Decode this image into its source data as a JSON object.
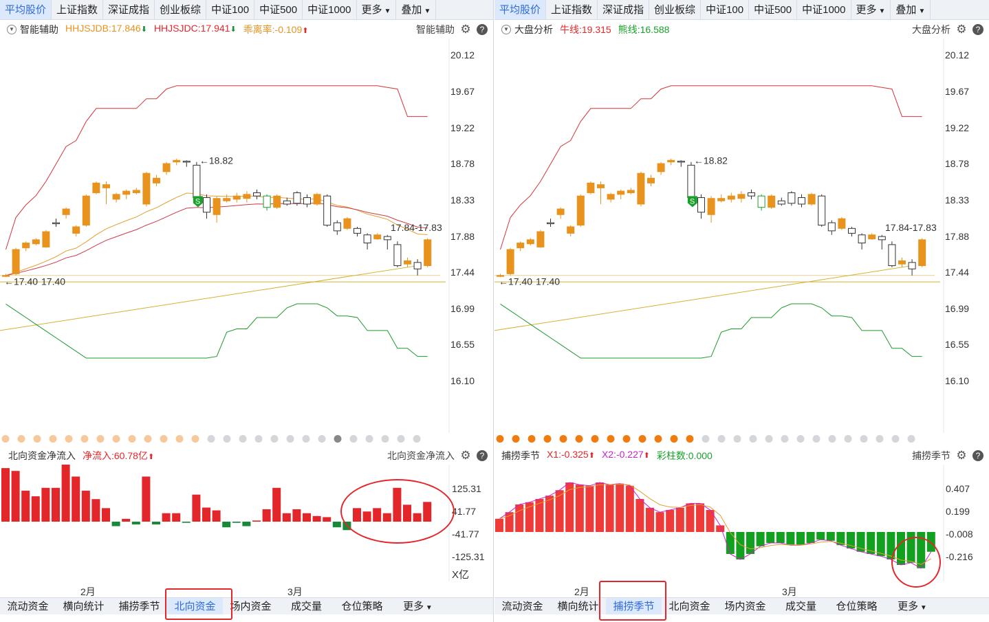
{
  "colors": {
    "up": "#e8931e",
    "down": "#ffffff",
    "bull_green": "#19a02a",
    "red": "#e3262a",
    "green": "#188a3a",
    "band_red": "#d6333a",
    "band_green": "#1c9a2a",
    "ma_orange": "#e0a030",
    "ma_red": "#d0384a",
    "trend": "#d4b030",
    "accent": "#2f6bd8"
  },
  "left": {
    "tabs": [
      {
        "label": "平均股价",
        "active": true
      },
      {
        "label": "上证指数"
      },
      {
        "label": "深证成指"
      },
      {
        "label": "创业板综"
      },
      {
        "label": "中证100"
      },
      {
        "label": "中证500"
      },
      {
        "label": "中证1000"
      },
      {
        "label": "更多",
        "dropdown": true
      },
      {
        "label": "叠加",
        "dropdown": true
      }
    ],
    "info": {
      "indicator": "智能辅助",
      "values": [
        {
          "text": "HHJSJDB:17.846",
          "color": "#e8931e",
          "arrow": "⬇",
          "arrow_color": "#188a3a"
        },
        {
          "text": "HHJSJDC:17.941",
          "color": "#e3262a",
          "arrow": "⬇",
          "arrow_color": "#188a3a"
        },
        {
          "text": "乖离率:-0.109",
          "color": "#e8931e",
          "arrow": "⬆",
          "arrow_color": "#e3262a"
        }
      ],
      "right_label": "智能辅助"
    },
    "sub_info": {
      "indicator": "北向资金净流入",
      "values": [
        {
          "text": "净流入:60.78亿",
          "color": "#e3262a",
          "arrow": "⬆",
          "arrow_color": "#e3262a"
        }
      ],
      "right_label": "北向资金净流入"
    },
    "sub_ylabels": [
      "125.31",
      "41.77",
      "-41.77",
      "-125.31"
    ],
    "unit": "X亿",
    "bottom_tabs": [
      {
        "label": "流动资金"
      },
      {
        "label": "横向统计"
      },
      {
        "label": "捕捞季节"
      },
      {
        "label": "北向资金",
        "active": true
      },
      {
        "label": "场内资金"
      },
      {
        "label": "成交量"
      },
      {
        "label": "仓位策略"
      },
      {
        "label": "更多",
        "dropdown": true
      }
    ],
    "dots": {
      "count": 27,
      "active_count": 0,
      "marker_index": 21
    },
    "north_flow": [
      95,
      90,
      55,
      45,
      60,
      60,
      110,
      80,
      55,
      40,
      24,
      -8,
      5,
      -5,
      80,
      -5,
      15,
      15,
      -2,
      48,
      25,
      20,
      -10,
      -2,
      -8,
      2,
      22,
      60,
      15,
      22,
      15,
      10,
      8,
      -10,
      -15,
      24,
      18,
      24,
      15,
      60,
      30,
      15,
      35
    ]
  },
  "right": {
    "tabs": [
      {
        "label": "平均股价",
        "active": true
      },
      {
        "label": "上证指数"
      },
      {
        "label": "深证成指"
      },
      {
        "label": "创业板综"
      },
      {
        "label": "中证100"
      },
      {
        "label": "中证500"
      },
      {
        "label": "中证1000"
      },
      {
        "label": "更多",
        "dropdown": true
      },
      {
        "label": "叠加",
        "dropdown": true
      }
    ],
    "info": {
      "indicator": "大盘分析",
      "values": [
        {
          "text": "牛线:19.315",
          "color": "#e3262a"
        },
        {
          "text": "熊线:16.588",
          "color": "#19a02a"
        }
      ],
      "right_label": "大盘分析"
    },
    "sub_info": {
      "indicator": "捕捞季节",
      "values": [
        {
          "text": "X1:-0.325",
          "color": "#e3262a",
          "arrow": "⬆",
          "arrow_color": "#e3262a"
        },
        {
          "text": "X2:-0.227",
          "color": "#cc22cc",
          "arrow": "⬆",
          "arrow_color": "#e3262a"
        },
        {
          "text": "彩柱数:0.000",
          "color": "#19a02a"
        }
      ],
      "right_label": "捕捞季节"
    },
    "sub_ylabels": [
      "0.407",
      "0.199",
      "-0.008",
      "-0.216"
    ],
    "bottom_tabs": [
      {
        "label": "流动资金"
      },
      {
        "label": "横向统计"
      },
      {
        "label": "捕捞季节",
        "active": true
      },
      {
        "label": "北向资金"
      },
      {
        "label": "场内资金"
      },
      {
        "label": "成交量"
      },
      {
        "label": "仓位策略"
      },
      {
        "label": "更多",
        "dropdown": true
      }
    ],
    "dots": {
      "count": 27,
      "active_count": 13
    },
    "season_x1": [
      0.12,
      0.18,
      0.25,
      0.27,
      0.3,
      0.33,
      0.38,
      0.45,
      0.43,
      0.42,
      0.45,
      0.43,
      0.44,
      0.42,
      0.3,
      0.22,
      0.18,
      0.2,
      0.22,
      0.26,
      0.26,
      0.2,
      0.06,
      -0.2,
      -0.25,
      -0.2,
      -0.13,
      -0.1,
      -0.1,
      -0.12,
      -0.12,
      -0.1,
      -0.07,
      -0.08,
      -0.12,
      -0.15,
      -0.18,
      -0.2,
      -0.22,
      -0.25,
      -0.3,
      -0.28,
      -0.33,
      -0.18
    ]
  },
  "main_chart": {
    "type": "candlestick",
    "ylabels": [
      "20.12",
      "19.67",
      "19.22",
      "18.78",
      "18.33",
      "17.88",
      "17.44",
      "16.99",
      "16.55",
      "16.10"
    ],
    "ann_high": "←18.82",
    "ann_low": "←17.40",
    "ann_low2": "17.40",
    "ann_last": "17.84-17.83",
    "months": [
      "2月",
      "3月"
    ],
    "candles": [
      [
        17.4,
        17.4,
        17.42,
        17.38
      ],
      [
        17.42,
        17.72,
        17.74,
        17.4
      ],
      [
        17.74,
        17.8,
        17.82,
        17.7
      ],
      [
        17.79,
        17.84,
        17.86,
        17.77
      ],
      [
        17.75,
        17.94,
        17.96,
        17.74
      ],
      [
        18.05,
        18.04,
        18.1,
        18.0
      ],
      [
        18.15,
        18.22,
        18.24,
        18.1
      ],
      [
        17.92,
        18.0,
        18.02,
        17.88
      ],
      [
        18.02,
        18.38,
        18.4,
        18.0
      ],
      [
        18.42,
        18.54,
        18.56,
        18.4
      ],
      [
        18.48,
        18.52,
        18.56,
        18.28
      ],
      [
        18.34,
        18.4,
        18.42,
        18.3
      ],
      [
        18.4,
        18.44,
        18.46,
        18.34
      ],
      [
        18.42,
        18.45,
        18.48,
        18.4
      ],
      [
        18.28,
        18.66,
        18.68,
        18.25
      ],
      [
        18.54,
        18.6,
        18.64,
        18.5
      ],
      [
        18.68,
        18.78,
        18.8,
        18.64
      ],
      [
        18.8,
        18.82,
        18.84,
        18.76
      ],
      [
        18.81,
        18.8,
        18.82,
        18.74
      ],
      [
        18.76,
        18.36,
        18.8,
        18.26
      ],
      [
        18.36,
        18.18,
        18.4,
        18.1
      ],
      [
        18.15,
        18.35,
        18.38,
        18.05
      ],
      [
        18.32,
        18.35,
        18.4,
        18.3
      ],
      [
        18.34,
        18.38,
        18.42,
        18.3
      ],
      [
        18.35,
        18.4,
        18.44,
        18.3
      ],
      [
        18.42,
        18.38,
        18.46,
        18.34
      ],
      [
        18.38,
        18.24,
        18.4,
        18.2
      ],
      [
        18.24,
        18.38,
        18.4,
        18.22
      ],
      [
        18.32,
        18.28,
        18.36,
        18.26
      ],
      [
        18.42,
        18.29,
        18.44,
        18.26
      ],
      [
        18.36,
        18.28,
        18.4,
        18.24
      ],
      [
        18.28,
        18.4,
        18.42,
        18.26
      ],
      [
        18.38,
        18.02,
        18.4,
        18.0
      ],
      [
        18.05,
        17.95,
        18.08,
        17.9
      ],
      [
        17.98,
        18.1,
        18.12,
        17.96
      ],
      [
        17.98,
        17.92,
        18.0,
        17.88
      ],
      [
        17.9,
        17.8,
        17.92,
        17.72
      ],
      [
        17.85,
        17.9,
        17.92,
        17.84
      ],
      [
        17.88,
        17.84,
        17.9,
        17.72
      ],
      [
        17.78,
        17.52,
        17.82,
        17.5
      ],
      [
        17.54,
        17.58,
        17.62,
        17.5
      ],
      [
        17.56,
        17.48,
        17.6,
        17.4
      ],
      [
        17.52,
        17.84,
        17.86,
        17.5
      ]
    ]
  }
}
